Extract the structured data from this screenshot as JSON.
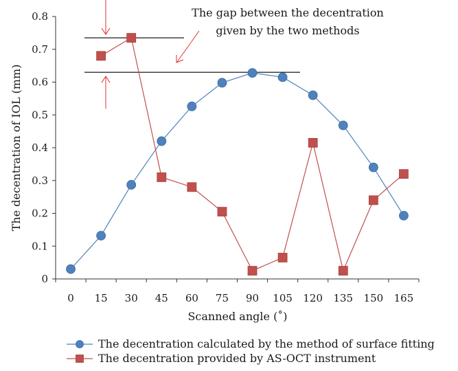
{
  "chart_data": {
    "type": "line",
    "title": "",
    "xlabel": "Scanned angle (˚)",
    "ylabel": "The decentration of IOL (mm)",
    "categories": [
      "0",
      "15",
      "30",
      "45",
      "60",
      "75",
      "90",
      "105",
      "120",
      "135",
      "150",
      "165"
    ],
    "ylim": [
      0,
      0.8
    ],
    "yticks": [
      "0",
      "0.1",
      "0.2",
      "0.3",
      "0.4",
      "0.5",
      "0.6",
      "0.7",
      "0.8"
    ],
    "grid": false,
    "legend_position": "bottom",
    "series": [
      {
        "name": "The decentration calculated by the method of surface fitting",
        "marker": "circle",
        "color": "#4f81bd",
        "values": [
          0.03,
          0.132,
          0.287,
          0.42,
          0.526,
          0.598,
          0.628,
          0.615,
          0.56,
          0.468,
          0.34,
          0.193
        ]
      },
      {
        "name": "The decentration provided by AS-OCT instrument",
        "marker": "square",
        "color": "#c0504d",
        "values": [
          null,
          0.68,
          0.735,
          0.31,
          0.28,
          0.205,
          0.025,
          0.065,
          0.415,
          0.025,
          0.24,
          0.32
        ]
      }
    ],
    "annotation": {
      "lines": [
        "The gap between the decentration",
        "given by the two methods"
      ],
      "color": "#e03030",
      "upper_reference": 0.735,
      "lower_reference": 0.63
    }
  }
}
